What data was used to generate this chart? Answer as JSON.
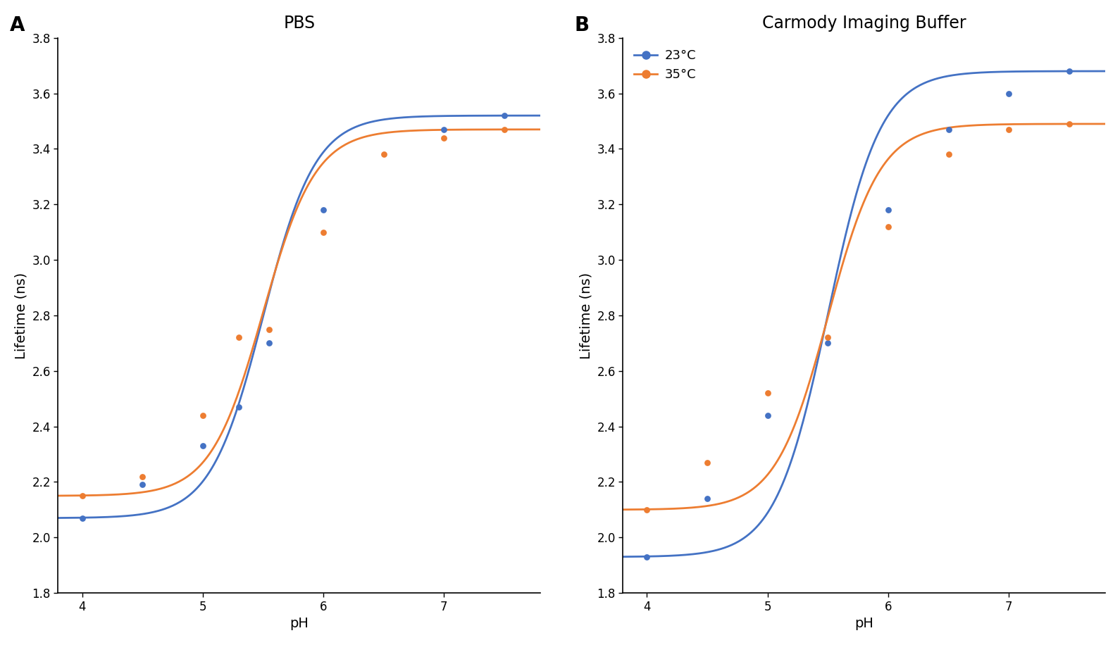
{
  "panel_A_title": "PBS",
  "panel_B_title": "Carmody Imaging Buffer",
  "xlabel": "pH",
  "ylabel": "Lifetime (ns)",
  "color_23": "#4472C4",
  "color_35": "#ED7D31",
  "legend_23": "23°C",
  "legend_35": "35°C",
  "ylim": [
    1.8,
    3.8
  ],
  "xlim": [
    3.8,
    7.8
  ],
  "yticks": [
    1.8,
    2.0,
    2.2,
    2.4,
    2.6,
    2.8,
    3.0,
    3.2,
    3.4,
    3.6,
    3.8
  ],
  "xticks": [
    4,
    5,
    6,
    7
  ],
  "PBS_23_x": [
    4.0,
    4.5,
    5.0,
    5.3,
    5.55,
    6.0,
    7.0,
    7.5
  ],
  "PBS_23_y": [
    2.07,
    2.19,
    2.33,
    2.47,
    2.7,
    3.18,
    3.47,
    3.52
  ],
  "PBS_35_x": [
    4.0,
    4.5,
    5.0,
    5.3,
    5.55,
    6.0,
    6.5,
    7.0,
    7.5
  ],
  "PBS_35_y": [
    2.15,
    2.22,
    2.44,
    2.72,
    2.75,
    3.1,
    3.38,
    3.44,
    3.47
  ],
  "CIB_23_x": [
    4.0,
    4.5,
    5.0,
    5.5,
    6.0,
    6.5,
    7.0,
    7.5
  ],
  "CIB_23_y": [
    1.93,
    2.14,
    2.44,
    2.7,
    3.18,
    3.47,
    3.6,
    3.68
  ],
  "CIB_35_x": [
    4.0,
    4.5,
    5.0,
    5.5,
    6.0,
    6.5,
    7.0,
    7.5
  ],
  "CIB_35_y": [
    2.1,
    2.27,
    2.52,
    2.72,
    3.12,
    3.38,
    3.47,
    3.49
  ]
}
